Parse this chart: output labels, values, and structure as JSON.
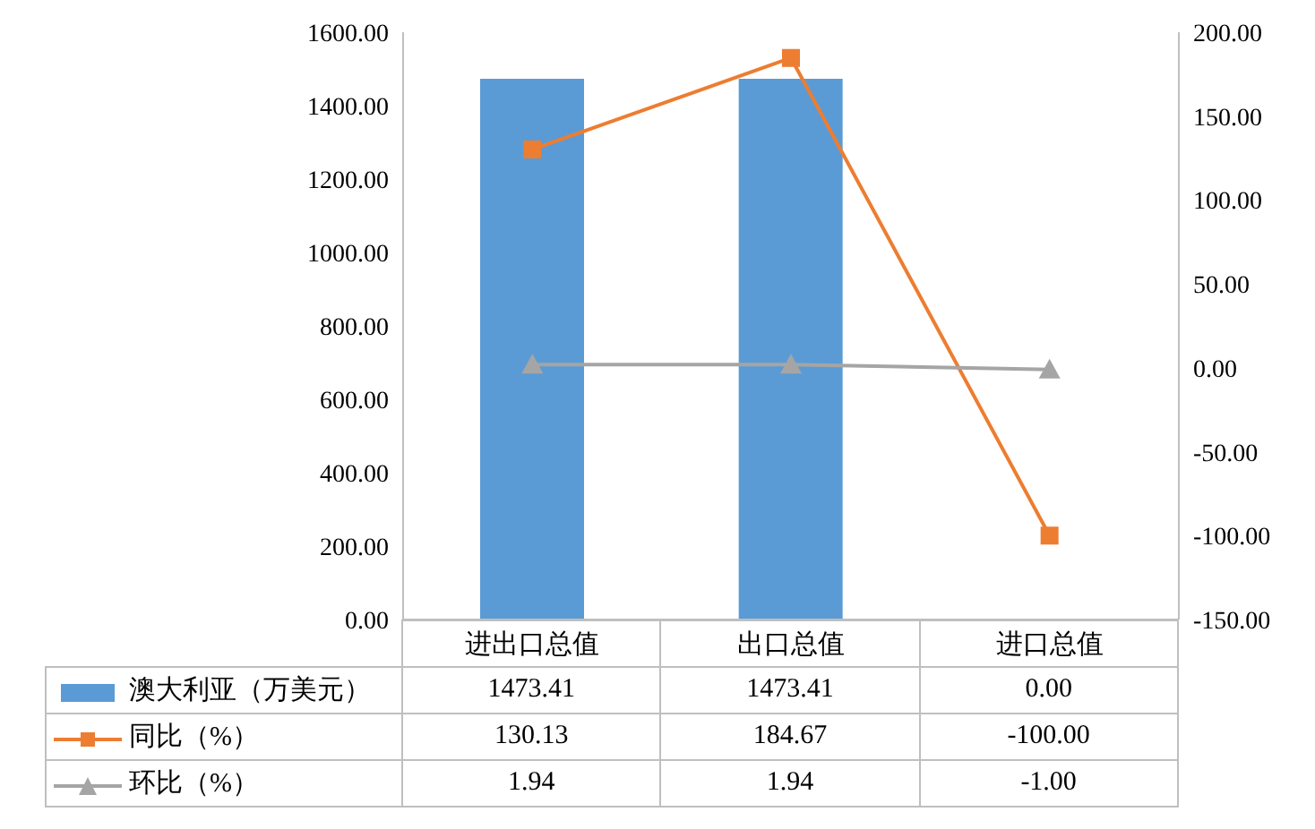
{
  "chart_data": {
    "type": "bar",
    "categories": [
      "进出口总值",
      "出口总值",
      "进口总值"
    ],
    "series": [
      {
        "name": "澳大利亚（万美元）",
        "color": "#5b9bd5",
        "values": [
          1473.41,
          1473.41,
          0.0
        ]
      },
      {
        "name": "同比（%）",
        "type": "line",
        "axis": "y2",
        "marker": "square",
        "color": "#ed7d31",
        "values": [
          130.13,
          184.67,
          -100.0
        ]
      },
      {
        "name": "环比（%）",
        "type": "line",
        "axis": "y2",
        "marker": "triangle",
        "color": "#a5a5a5",
        "values": [
          1.94,
          1.94,
          -1.0
        ]
      }
    ],
    "ylim": [
      0,
      1600
    ],
    "yticks": [
      {
        "value": 0,
        "label": "0.00"
      },
      {
        "value": 200,
        "label": "200.00"
      },
      {
        "value": 400,
        "label": "400.00"
      },
      {
        "value": 600,
        "label": "600.00"
      },
      {
        "value": 800,
        "label": "800.00"
      },
      {
        "value": 1000,
        "label": "1000.00"
      },
      {
        "value": 1200,
        "label": "1200.00"
      },
      {
        "value": 1400,
        "label": "1400.00"
      },
      {
        "value": 1600,
        "label": "1600.00"
      }
    ],
    "y2lim": [
      -150,
      200
    ],
    "y2ticks": [
      {
        "value": -150,
        "label": "-150.00"
      },
      {
        "value": -100,
        "label": "-100.00"
      },
      {
        "value": -50,
        "label": "-50.00"
      },
      {
        "value": 0,
        "label": "0.00"
      },
      {
        "value": 50,
        "label": "50.00"
      },
      {
        "value": 100,
        "label": "100.00"
      },
      {
        "value": 150,
        "label": "150.00"
      },
      {
        "value": 200,
        "label": "200.00"
      }
    ],
    "legend": "bottom",
    "value_labels": [
      [
        "1473.41",
        "1473.41",
        "0.00"
      ],
      [
        "130.13",
        "184.67",
        "-100.00"
      ],
      [
        "1.94",
        "1.94",
        "-1.00"
      ]
    ]
  }
}
